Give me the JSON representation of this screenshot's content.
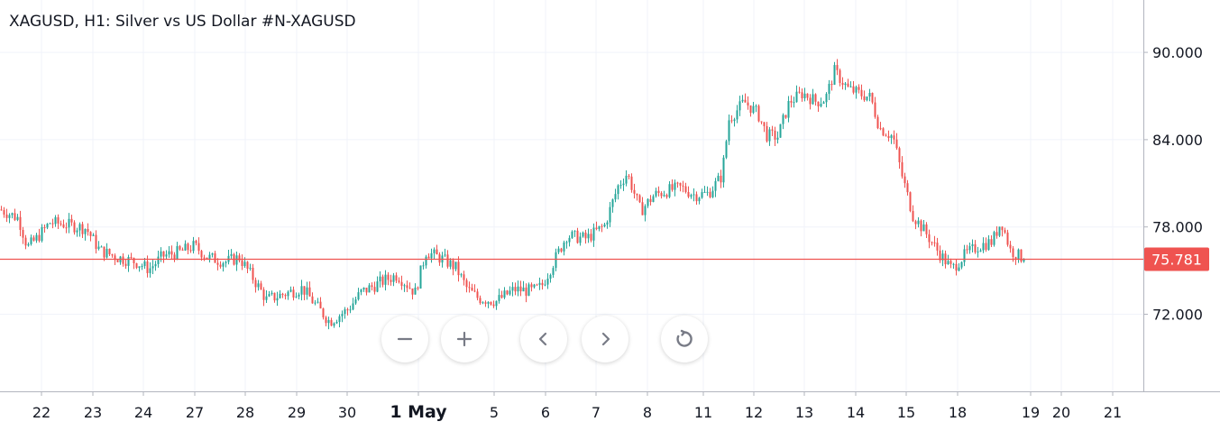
{
  "header": {
    "title": "XAGUSD, H1: Silver vs US Dollar #N-XAGUSD"
  },
  "colors": {
    "up": "#26a69a",
    "down": "#ef5350",
    "price_line": "#ef5350",
    "grid": "#f0f3fa",
    "axis": "#b2b5be"
  },
  "controls": [
    {
      "name": "zoom-out-button",
      "icon": "minus-icon"
    },
    {
      "name": "zoom-in-button",
      "icon": "plus-icon"
    },
    {
      "name": "scroll-left-button",
      "icon": "chevron-left-icon"
    },
    {
      "name": "scroll-right-button",
      "icon": "chevron-right-icon"
    },
    {
      "name": "reset-chart-button",
      "icon": "reset-icon"
    }
  ],
  "chart_data": {
    "type": "candlestick",
    "title": "XAGUSD, H1: Silver vs US Dollar #N-XAGUSD",
    "y_ticks": [
      "90.000",
      "84.000",
      "78.000",
      "72.000"
    ],
    "x_ticks": [
      "22",
      "23",
      "24",
      "27",
      "28",
      "29",
      "30",
      "1 May",
      "5",
      "6",
      "7",
      "8",
      "11",
      "12",
      "13",
      "14",
      "15",
      "18",
      "19",
      "20",
      "21"
    ],
    "ylim": [
      66.7,
      93.6
    ],
    "current_price": {
      "value": 75.781,
      "label": "75.781"
    },
    "grid": true,
    "anchors": [
      [
        0,
        79.2
      ],
      [
        20,
        78.6
      ],
      [
        30,
        76.6
      ],
      [
        40,
        77.2
      ],
      [
        55,
        78.3
      ],
      [
        70,
        78.2
      ],
      [
        95,
        77.9
      ],
      [
        110,
        76.4
      ],
      [
        130,
        75.9
      ],
      [
        150,
        75.6
      ],
      [
        165,
        75.1
      ],
      [
        180,
        76.0
      ],
      [
        200,
        76.3
      ],
      [
        215,
        76.7
      ],
      [
        230,
        75.9
      ],
      [
        250,
        75.6
      ],
      [
        265,
        75.9
      ],
      [
        280,
        74.5
      ],
      [
        295,
        73.0
      ],
      [
        315,
        73.4
      ],
      [
        335,
        73.8
      ],
      [
        350,
        72.6
      ],
      [
        365,
        71.5
      ],
      [
        385,
        72.3
      ],
      [
        400,
        73.5
      ],
      [
        425,
        74.3
      ],
      [
        440,
        74.7
      ],
      [
        460,
        73.5
      ],
      [
        472,
        76.3
      ],
      [
        490,
        75.8
      ],
      [
        505,
        75.2
      ],
      [
        518,
        73.7
      ],
      [
        530,
        73.1
      ],
      [
        550,
        72.9
      ],
      [
        570,
        73.7
      ],
      [
        590,
        73.6
      ],
      [
        600,
        73.9
      ],
      [
        612,
        75.4
      ],
      [
        628,
        77.4
      ],
      [
        650,
        77.2
      ],
      [
        670,
        78.1
      ],
      [
        685,
        80.8
      ],
      [
        695,
        81.7
      ],
      [
        710,
        79.1
      ],
      [
        725,
        80.2
      ],
      [
        740,
        80.5
      ],
      [
        755,
        80.7
      ],
      [
        770,
        80.2
      ],
      [
        785,
        80.3
      ],
      [
        800,
        81.5
      ],
      [
        808,
        85.4
      ],
      [
        825,
        86.6
      ],
      [
        840,
        85.8
      ],
      [
        850,
        84.3
      ],
      [
        862,
        84.2
      ],
      [
        875,
        86.6
      ],
      [
        890,
        87.2
      ],
      [
        905,
        86.6
      ],
      [
        915,
        86.8
      ],
      [
        925,
        88.7
      ],
      [
        940,
        87.5
      ],
      [
        955,
        87.1
      ],
      [
        965,
        86.9
      ],
      [
        975,
        84.8
      ],
      [
        990,
        84.2
      ],
      [
        1000,
        81.5
      ],
      [
        1012,
        78.8
      ],
      [
        1025,
        77.7
      ],
      [
        1040,
        76.3
      ],
      [
        1055,
        75.1
      ],
      [
        1070,
        76.1
      ],
      [
        1085,
        76.7
      ],
      [
        1100,
        77.0
      ],
      [
        1110,
        78.4
      ],
      [
        1120,
        76.4
      ],
      [
        1135,
        75.781
      ]
    ]
  }
}
